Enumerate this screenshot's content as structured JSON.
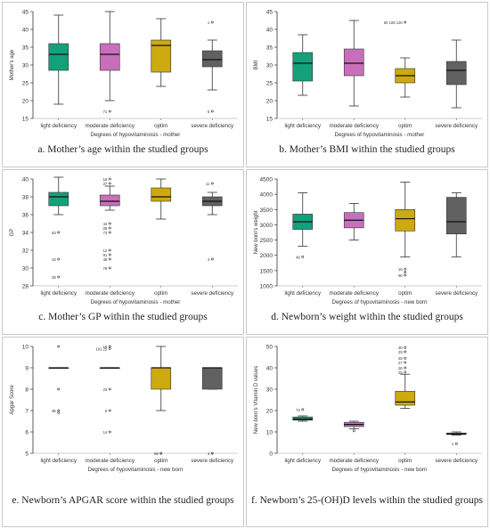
{
  "colors": {
    "light": "#14a07a",
    "moderate": "#c86fbb",
    "optim": "#ccaa10",
    "severe": "#616161"
  },
  "panels": [
    {
      "caption": "a. Mother’s age within the studied groups",
      "chart_data": {
        "type": "boxplot",
        "ylabel": "Mother's age",
        "xlabel": "Degrees of hypovitaminosis - mother",
        "ylim": [
          15,
          45
        ],
        "yticks": [
          15,
          20,
          25,
          30,
          35,
          40,
          45
        ],
        "categories": [
          "light deficiency",
          "moderate deficiency",
          "optim",
          "severe deficiency"
        ],
        "boxes": [
          {
            "min": 19,
            "q1": 28.5,
            "median": 33,
            "q3": 36,
            "max": 44
          },
          {
            "min": 20,
            "q1": 28.5,
            "median": 33,
            "q3": 36,
            "max": 45
          },
          {
            "min": 24,
            "q1": 28,
            "median": 35.5,
            "q3": 37,
            "max": 43
          },
          {
            "min": 23,
            "q1": 29.5,
            "median": 31.5,
            "q3": 34,
            "max": 37
          }
        ],
        "outliers": [
          {
            "group": 1,
            "y": 17,
            "label": "71"
          },
          {
            "group": 3,
            "y": 42,
            "label": "1"
          },
          {
            "group": 3,
            "y": 17,
            "label": "5"
          }
        ]
      }
    },
    {
      "caption": "b. Mother’s BMI within the studied groups",
      "chart_data": {
        "type": "boxplot",
        "ylabel": "BMI",
        "xlabel": "Degrees of hypovitaminosis - mother",
        "ylim": [
          15,
          45
        ],
        "yticks": [
          15,
          20,
          25,
          30,
          35,
          40,
          45
        ],
        "categories": [
          "light deficiency",
          "moderate deficiency",
          "optim",
          "severe deficiency"
        ],
        "boxes": [
          {
            "min": 21.5,
            "q1": 25.5,
            "median": 30.5,
            "q3": 33.5,
            "max": 38.5
          },
          {
            "min": 18.5,
            "q1": 27,
            "median": 30.5,
            "q3": 34.5,
            "max": 42.5
          },
          {
            "min": 21,
            "q1": 25,
            "median": 27,
            "q3": 29,
            "max": 32
          },
          {
            "min": 18,
            "q1": 24.5,
            "median": 28.5,
            "q3": 31,
            "max": 37
          }
        ],
        "outliers": [
          {
            "group": 2,
            "y": 42,
            "label": "60 108 120"
          }
        ]
      }
    },
    {
      "caption": "c. Mother’s GP within the studied groups",
      "chart_data": {
        "type": "boxplot",
        "ylabel": "GP",
        "xlabel": "Degrees of hypovitaminosis - mother",
        "ylim": [
          28,
          40
        ],
        "yticks": [
          28,
          30,
          32,
          34,
          36,
          38,
          40
        ],
        "categories": [
          "light deficiency",
          "moderate deficiency",
          "optim",
          "severe deficiency"
        ],
        "boxes": [
          {
            "min": 36,
            "q1": 37,
            "median": 38,
            "q3": 38.5,
            "max": 40.2
          },
          {
            "min": 36.5,
            "q1": 37,
            "median": 37.5,
            "q3": 38.2,
            "max": 39.2
          },
          {
            "min": 35.5,
            "q1": 37.5,
            "median": 38,
            "q3": 39,
            "max": 40
          },
          {
            "min": 36,
            "q1": 37,
            "median": 37.5,
            "q3": 38,
            "max": 38.5
          }
        ],
        "outliers": [
          {
            "group": 0,
            "y": 34,
            "label": "63"
          },
          {
            "group": 0,
            "y": 31,
            "label": "33"
          },
          {
            "group": 0,
            "y": 29,
            "label": "28"
          },
          {
            "group": 1,
            "y": 40,
            "label": "16"
          },
          {
            "group": 1,
            "y": 39.5,
            "label": "27"
          },
          {
            "group": 1,
            "y": 35,
            "label": "44"
          },
          {
            "group": 1,
            "y": 34.5,
            "label": "28"
          },
          {
            "group": 1,
            "y": 34,
            "label": "73"
          },
          {
            "group": 1,
            "y": 32,
            "label": "12"
          },
          {
            "group": 1,
            "y": 31.5,
            "label": "91"
          },
          {
            "group": 1,
            "y": 31,
            "label": "48"
          },
          {
            "group": 1,
            "y": 30,
            "label": "76"
          },
          {
            "group": 3,
            "y": 39.5,
            "label": "11"
          },
          {
            "group": 3,
            "y": 31,
            "label": "4"
          }
        ]
      }
    },
    {
      "caption": "d. Newborn’s weight within the studied groups",
      "chart_data": {
        "type": "boxplot",
        "ylabel": "New born's weight",
        "xlabel": "Degrees of hypovitaminosis - new born",
        "ylim": [
          1000,
          4500
        ],
        "yticks": [
          1000,
          1500,
          2000,
          2500,
          3000,
          3500,
          4000,
          4500
        ],
        "categories": [
          "light deficiency",
          "moderate deficiency",
          "optim",
          "severe deficiency"
        ],
        "boxes": [
          {
            "min": 2300,
            "q1": 2850,
            "median": 3100,
            "q3": 3350,
            "max": 4050
          },
          {
            "min": 2500,
            "q1": 2900,
            "median": 3150,
            "q3": 3400,
            "max": 3700
          },
          {
            "min": 1950,
            "q1": 2800,
            "median": 3200,
            "q3": 3500,
            "max": 4400
          },
          {
            "min": 1950,
            "q1": 2700,
            "median": 3100,
            "q3": 3900,
            "max": 4050
          }
        ],
        "outliers": [
          {
            "group": 0,
            "y": 1950,
            "label": "49"
          },
          {
            "group": 2,
            "y": 1550,
            "label": "16"
          },
          {
            "group": 2,
            "y": 1450,
            "label": ""
          },
          {
            "group": 2,
            "y": 1350,
            "label": "90"
          }
        ]
      }
    },
    {
      "caption": "e. Newborn’s APGAR score within the studied groups",
      "chart_data": {
        "type": "boxplot",
        "ylabel": "Apgar Score",
        "xlabel": "Degrees of hypovitaminosis - new born",
        "ylim": [
          5,
          10
        ],
        "yticks": [
          5,
          6,
          7,
          8,
          9,
          10
        ],
        "categories": [
          "light deficiency",
          "moderate deficiency",
          "optim",
          "severe deficiency"
        ],
        "boxes": [
          {
            "min": 9,
            "q1": 9,
            "median": 9,
            "q3": 9,
            "max": 9
          },
          {
            "min": 9,
            "q1": 9,
            "median": 9,
            "q3": 9,
            "max": 9
          },
          {
            "min": 7,
            "q1": 8,
            "median": 9,
            "q3": 9,
            "max": 10
          },
          {
            "min": 8,
            "q1": 8,
            "median": 9,
            "q3": 9,
            "max": 9
          }
        ],
        "outliers": [
          {
            "group": 0,
            "y": 10,
            "label": ""
          },
          {
            "group": 0,
            "y": 8,
            "label": ""
          },
          {
            "group": 0,
            "y": 7,
            "label": "36"
          },
          {
            "group": 0,
            "y": 6.9,
            "label": ""
          },
          {
            "group": 1,
            "y": 10,
            "label": "16"
          },
          {
            "group": 1,
            "y": 9.9,
            "label": "101 25"
          },
          {
            "group": 1,
            "y": 8,
            "label": "23"
          },
          {
            "group": 1,
            "y": 7,
            "label": "9"
          },
          {
            "group": 1,
            "y": 6,
            "label": "14"
          },
          {
            "group": 2,
            "y": 5,
            "label": "89"
          },
          {
            "group": 3,
            "y": 5,
            "label": "4"
          }
        ]
      }
    },
    {
      "caption": "f. Newborn’s 25-(OH)D levels within the studied groups",
      "chart_data": {
        "type": "boxplot",
        "ylabel": "New born's Vitamin D values",
        "xlabel": "Degrees of hypovitaminosis - new born",
        "ylim": [
          0,
          50
        ],
        "yticks": [
          0,
          10,
          20,
          30,
          40,
          50
        ],
        "categories": [
          "light deficiency",
          "moderate deficiency",
          "optim",
          "severe deficiency"
        ],
        "boxes": [
          {
            "min": 15,
            "q1": 15.5,
            "median": 16,
            "q3": 17,
            "max": 17.5
          },
          {
            "min": 11.5,
            "q1": 12.5,
            "median": 13.5,
            "q3": 14.5,
            "max": 15
          },
          {
            "min": 21,
            "q1": 22.5,
            "median": 24,
            "q3": 29,
            "max": 37
          },
          {
            "min": 8.5,
            "q1": 8.8,
            "median": 9,
            "q3": 9.5,
            "max": 10
          }
        ],
        "outliers": [
          {
            "group": 0,
            "y": 20.5,
            "label": "73"
          },
          {
            "group": 1,
            "y": 10.5,
            "label": ""
          },
          {
            "group": 2,
            "y": 49.5,
            "label": "30"
          },
          {
            "group": 2,
            "y": 47.5,
            "label": "29"
          },
          {
            "group": 2,
            "y": 44.5,
            "label": "28"
          },
          {
            "group": 2,
            "y": 42.5,
            "label": "27"
          },
          {
            "group": 2,
            "y": 40,
            "label": "26"
          },
          {
            "group": 2,
            "y": 38,
            "label": "25"
          },
          {
            "group": 3,
            "y": 4.5,
            "label": "1"
          }
        ]
      }
    }
  ]
}
